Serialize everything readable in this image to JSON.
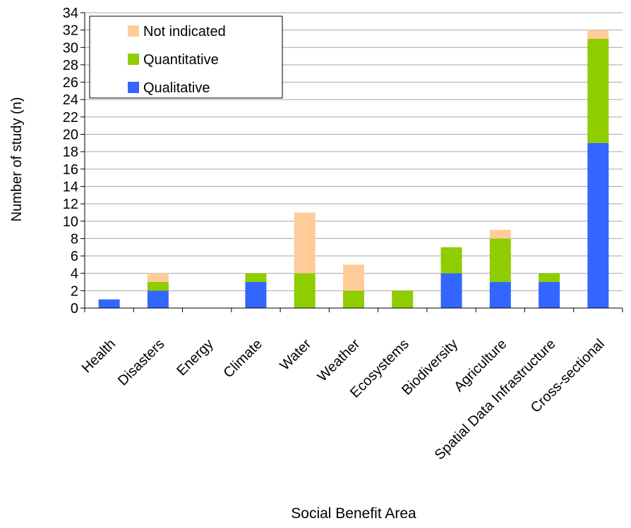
{
  "chart_data": {
    "type": "bar",
    "stacked": true,
    "title": "",
    "xlabel": "Social Benefit Area",
    "ylabel": "Number of study (n)",
    "ylim": [
      0,
      34
    ],
    "yticks": [
      0,
      2,
      4,
      6,
      8,
      10,
      12,
      14,
      16,
      18,
      20,
      22,
      24,
      26,
      28,
      30,
      32,
      34
    ],
    "grid": true,
    "legend_position": "top-left",
    "categories": [
      "Health",
      "Disasters",
      "Energy",
      "Climate",
      "Water",
      "Weather",
      "Ecosystems",
      "Biodiversity",
      "Agriculture",
      "Spatial Data Infrastructure",
      "Cross-sectional"
    ],
    "series": [
      {
        "name": "Qualitative",
        "color": "#3366ff",
        "values": [
          1,
          2,
          0,
          3,
          0,
          0,
          0,
          4,
          3,
          3,
          19
        ]
      },
      {
        "name": "Quantitative",
        "color": "#8fcc00",
        "values": [
          0,
          1,
          0,
          1,
          4,
          2,
          2,
          3,
          5,
          1,
          12
        ]
      },
      {
        "name": "Not indicated",
        "color": "#ffcc99",
        "values": [
          0,
          1,
          0,
          0,
          7,
          3,
          0,
          0,
          1,
          0,
          1
        ]
      }
    ],
    "legend_order": [
      "Not indicated",
      "Quantitative",
      "Qualitative"
    ]
  }
}
